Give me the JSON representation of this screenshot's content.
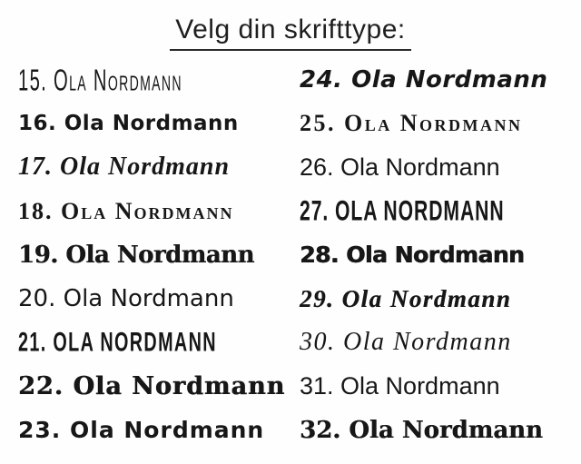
{
  "page": {
    "background_color": "#fefefe",
    "text_color": "#1b1b1b"
  },
  "title": {
    "text": "Velg din skrifttype:"
  },
  "items": [
    {
      "number": "15",
      "name": "Ola Nordmann",
      "label": "15. Ola Nordmann",
      "font_style": "tall-condensed-handwritten-caps"
    },
    {
      "number": "16",
      "name": "Ola Nordmann",
      "label": "16. Ola Nordmann",
      "font_style": "rounded-bold-marker"
    },
    {
      "number": "17",
      "name": "Ola Nordmann",
      "label": "17. Ola Nordmann",
      "font_style": "bold-flowing-script"
    },
    {
      "number": "18",
      "name": "Ola Nordmann",
      "label": "18. Ola Nordmann",
      "font_style": "serif-small-caps"
    },
    {
      "number": "19",
      "name": "Ola Nordmann",
      "label": "19. Ola Nordmann",
      "font_style": "semi-blackletter-bold"
    },
    {
      "number": "20",
      "name": "Ola Nordmann",
      "label": "20. Ola Nordmann",
      "font_style": "rounded-casual-sans"
    },
    {
      "number": "21",
      "name": "Ola Nordmann",
      "label": "21. OLA NORDMANN",
      "font_style": "angular-condensed-caps"
    },
    {
      "number": "22",
      "name": "Ola Nordmann",
      "label": "22. Ola Nordmann",
      "font_style": "fraktur-blackletter"
    },
    {
      "number": "23",
      "name": "Ola Nordmann",
      "label": "23. Ola Nordmann",
      "font_style": "rounded-marker-handwriting"
    },
    {
      "number": "24",
      "name": "Ola Nordmann",
      "label": "24. Ola Nordmann",
      "font_style": "bold-brush-script-italic"
    },
    {
      "number": "25",
      "name": "Ola Nordmann",
      "label": "25. Ola Nordmann",
      "font_style": "celtic-uncial"
    },
    {
      "number": "26",
      "name": "Ola Nordmann",
      "label": "26. Ola Nordmann",
      "font_style": "clean-rounded-sans"
    },
    {
      "number": "27",
      "name": "Ola Nordmann",
      "label": "27. OLA NORDMANN",
      "font_style": "condensed-bold-caps-sans"
    },
    {
      "number": "28",
      "name": "Ola Nordmann",
      "label": "28. Ola Nordmann",
      "font_style": "heavy-black-sans"
    },
    {
      "number": "29",
      "name": "Ola Nordmann",
      "label": "29. Ola Nordmann",
      "font_style": "fat-italic-script"
    },
    {
      "number": "30",
      "name": "Ola Nordmann",
      "label": "30. Ola Nordmann",
      "font_style": "elegant-calligraphy-script"
    },
    {
      "number": "31",
      "name": "Ola Nordmann",
      "label": "31. Ola Nordmann",
      "font_style": "clean-light-sans"
    },
    {
      "number": "32",
      "name": "Ola Nordmann",
      "label": "32. Ola Nordmann",
      "font_style": "heavy-bold-serif"
    }
  ]
}
